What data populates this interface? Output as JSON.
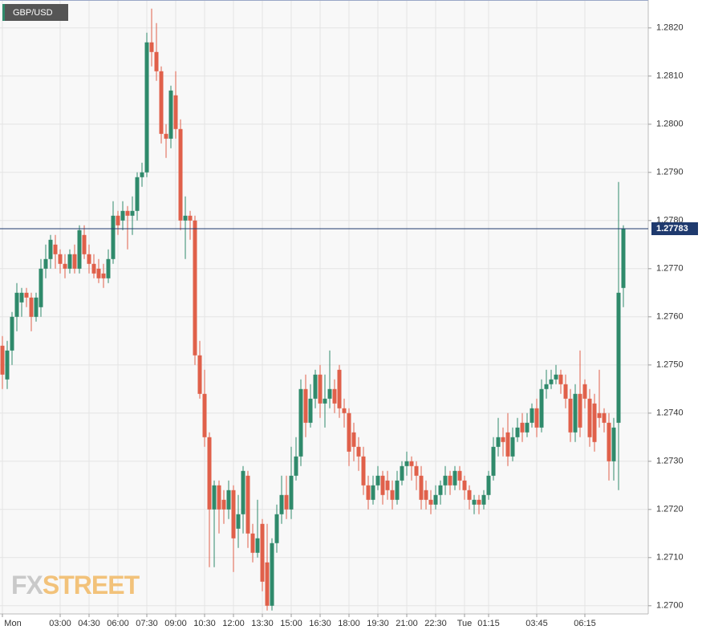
{
  "chart_data": {
    "type": "candlestick",
    "title": "GBP/USD",
    "watermark": {
      "prefix": "FX",
      "suffix": "STREET"
    },
    "up_color": "#2f8a6b",
    "down_color": "#e0604a",
    "grid": true,
    "last_line_color": "#1f3a6e",
    "categories": [
      "Mon",
      null,
      null,
      null,
      null,
      null,
      null,
      null,
      null,
      null,
      null,
      null,
      "03:00",
      null,
      null,
      null,
      null,
      null,
      "04:30",
      null,
      null,
      null,
      null,
      null,
      "06:00",
      null,
      null,
      null,
      null,
      null,
      "07:30",
      null,
      null,
      null,
      null,
      null,
      "09:00",
      null,
      null,
      null,
      null,
      null,
      "10:30",
      null,
      null,
      null,
      null,
      null,
      "12:00",
      null,
      null,
      null,
      null,
      null,
      "13:30",
      null,
      null,
      null,
      null,
      null,
      "15:00",
      null,
      null,
      null,
      null,
      null,
      "16:30",
      null,
      null,
      null,
      null,
      null,
      "18:00",
      null,
      null,
      null,
      null,
      null,
      "19:30",
      null,
      null,
      null,
      null,
      null,
      "21:00",
      null,
      null,
      null,
      null,
      null,
      "22:30",
      null,
      null,
      null,
      null,
      null,
      "Tue",
      null,
      null,
      null,
      null,
      "01:15",
      null,
      null,
      null,
      null,
      null,
      null,
      null,
      null,
      null,
      "03:45",
      null,
      null,
      null,
      null,
      null,
      null,
      null,
      null,
      null,
      "06:15",
      null,
      null,
      null,
      null,
      null,
      null,
      null,
      null
    ],
    "open": [
      1.2754,
      1.2747,
      1.2753,
      1.276,
      1.2763,
      1.2765,
      1.2764,
      1.276,
      1.2762,
      1.277,
      1.2772,
      1.2775,
      1.2773,
      1.2771,
      1.277,
      1.2773,
      1.277,
      1.2777,
      1.2773,
      1.2771,
      1.277,
      1.2769,
      1.2768,
      1.2772,
      1.2781,
      1.278,
      1.2782,
      1.2781,
      1.2782,
      1.2789,
      1.279,
      1.2817,
      1.2815,
      1.2811,
      1.2798,
      1.2797,
      1.2806,
      1.2799,
      1.278,
      1.2781,
      1.278,
      1.2752,
      1.2744,
      1.2735,
      1.272,
      1.2725,
      1.2722,
      1.272,
      1.2724,
      1.2716,
      1.2719,
      1.2727,
      1.2715,
      1.2711,
      1.2717,
      1.2709,
      1.27,
      1.2713,
      1.2719,
      1.2723,
      1.272,
      1.2727,
      1.2731,
      1.2745,
      1.2738,
      1.2743,
      1.2748,
      1.2742,
      1.2743,
      1.2745,
      1.2749,
      1.2741,
      1.274,
      1.2736,
      1.2733,
      1.2731,
      1.2725,
      1.2722,
      1.2725,
      1.2727,
      1.2726,
      1.2724,
      1.2722,
      1.2726,
      1.2729,
      1.273,
      1.2729,
      1.2727,
      1.2724,
      1.2722,
      1.2721,
      1.2723,
      1.2725,
      1.2727,
      1.2725,
      1.2728,
      1.2726,
      1.2724,
      1.2721,
      1.2722,
      1.2721,
      1.2723,
      1.2727,
      1.2733,
      1.2735,
      1.2736,
      1.2731,
      1.2735,
      1.2738,
      1.2736,
      1.2738,
      1.2741,
      1.2737,
      1.2745,
      1.2746,
      1.2747,
      1.2748,
      1.2746,
      1.2743,
      1.2736,
      1.2744,
      1.2746,
      1.2743,
      1.2742,
      1.274,
      1.274,
      1.2738,
      1.273,
      1.2738,
      1.2766
    ],
    "high": [
      1.2756,
      1.2755,
      1.2761,
      1.2767,
      1.2766,
      1.2766,
      1.2765,
      1.2765,
      1.2772,
      1.2775,
      1.2777,
      1.2777,
      1.2774,
      1.2773,
      1.2774,
      1.2775,
      1.2779,
      1.2779,
      1.2775,
      1.2773,
      1.2772,
      1.2771,
      1.2774,
      1.2784,
      1.2782,
      1.2784,
      1.2783,
      1.2785,
      1.279,
      1.2792,
      1.2819,
      1.2824,
      1.2821,
      1.2812,
      1.28,
      1.2808,
      1.2811,
      1.2801,
      1.2785,
      1.2782,
      1.2781,
      1.2755,
      1.2749,
      1.2736,
      1.2726,
      1.2726,
      1.2724,
      1.2726,
      1.2725,
      1.2723,
      1.2729,
      1.2728,
      1.2717,
      1.2722,
      1.2718,
      1.2717,
      1.2714,
      1.2721,
      1.2727,
      1.2727,
      1.2733,
      1.2735,
      1.2747,
      1.2748,
      1.2746,
      1.2749,
      1.275,
      1.2748,
      1.2753,
      1.2747,
      1.275,
      1.2743,
      1.2741,
      1.2738,
      1.2735,
      1.2733,
      1.2727,
      1.2727,
      1.2729,
      1.2728,
      1.2728,
      1.2726,
      1.2728,
      1.273,
      1.2732,
      1.2731,
      1.273,
      1.2729,
      1.2726,
      1.2724,
      1.2725,
      1.2726,
      1.2729,
      1.2728,
      1.2729,
      1.2729,
      1.2727,
      1.2725,
      1.2723,
      1.2723,
      1.2724,
      1.2728,
      1.2735,
      1.2739,
      1.2737,
      1.274,
      1.2737,
      1.2739,
      1.274,
      1.274,
      1.2742,
      1.2743,
      1.2747,
      1.2749,
      1.2749,
      1.275,
      1.2749,
      1.2748,
      1.2745,
      1.2746,
      1.2753,
      1.2747,
      1.2745,
      1.2744,
      1.2749,
      1.2741,
      1.274,
      1.2739,
      1.2788,
      1.2779
    ],
    "low": [
      1.2745,
      1.2745,
      1.275,
      1.2757,
      1.276,
      1.2762,
      1.2757,
      1.2759,
      1.276,
      1.2768,
      1.277,
      1.277,
      1.2769,
      1.2768,
      1.2769,
      1.2769,
      1.2769,
      1.2772,
      1.2769,
      1.2768,
      1.2767,
      1.2766,
      1.2767,
      1.2771,
      1.2777,
      1.2778,
      1.2774,
      1.2777,
      1.278,
      1.2787,
      1.2789,
      1.2812,
      1.2809,
      1.2796,
      1.2793,
      1.2795,
      1.2797,
      1.2778,
      1.2772,
      1.2776,
      1.275,
      1.2743,
      1.2733,
      1.2708,
      1.2708,
      1.2715,
      1.2717,
      1.2718,
      1.2707,
      1.2712,
      1.2715,
      1.2712,
      1.2709,
      1.271,
      1.2703,
      1.2699,
      1.2699,
      1.2711,
      1.2717,
      1.2718,
      1.2718,
      1.2726,
      1.2729,
      1.2735,
      1.2737,
      1.2741,
      1.2739,
      1.2737,
      1.2741,
      1.274,
      1.2739,
      1.2737,
      1.2729,
      1.273,
      1.2728,
      1.2723,
      1.272,
      1.2721,
      1.2724,
      1.2721,
      1.2722,
      1.272,
      1.2721,
      1.2725,
      1.2727,
      1.2726,
      1.2724,
      1.272,
      1.272,
      1.2719,
      1.272,
      1.2721,
      1.2723,
      1.2723,
      1.2724,
      1.2724,
      1.2722,
      1.272,
      1.2719,
      1.2719,
      1.272,
      1.2722,
      1.2726,
      1.2731,
      1.2731,
      1.2729,
      1.273,
      1.2734,
      1.2734,
      1.2735,
      1.2737,
      1.2735,
      1.2736,
      1.2743,
      1.2745,
      1.2746,
      1.2744,
      1.2741,
      1.2734,
      1.2734,
      1.2735,
      1.2741,
      1.2733,
      1.2732,
      1.2737,
      1.2736,
      1.2726,
      1.2726,
      1.2724,
      1.2762
    ],
    "close": [
      1.2748,
      1.2753,
      1.276,
      1.2765,
      1.2765,
      1.2764,
      1.276,
      1.2764,
      1.277,
      1.2772,
      1.2776,
      1.2773,
      1.2771,
      1.277,
      1.2773,
      1.277,
      1.2778,
      1.2773,
      1.2771,
      1.2769,
      1.2768,
      1.2768,
      1.2772,
      1.2781,
      1.2779,
      1.2782,
      1.2781,
      1.2782,
      1.2789,
      1.279,
      1.2817,
      1.2815,
      1.2811,
      1.2798,
      1.2797,
      1.2807,
      1.2799,
      1.278,
      1.2781,
      1.278,
      1.2752,
      1.2744,
      1.2735,
      1.272,
      1.2725,
      1.272,
      1.272,
      1.2724,
      1.2714,
      1.2719,
      1.2728,
      1.2715,
      1.2711,
      1.2714,
      1.2705,
      1.27,
      1.2713,
      1.2719,
      1.2723,
      1.272,
      1.2727,
      1.2731,
      1.2745,
      1.2738,
      1.2743,
      1.2748,
      1.2742,
      1.2743,
      1.2745,
      1.2742,
      1.2741,
      1.274,
      1.2732,
      1.2733,
      1.2731,
      1.2725,
      1.2722,
      1.2725,
      1.2727,
      1.2723,
      1.2724,
      1.2722,
      1.2726,
      1.2729,
      1.273,
      1.2729,
      1.2727,
      1.2722,
      1.2722,
      1.2721,
      1.2723,
      1.2725,
      1.2727,
      1.2725,
      1.2728,
      1.2726,
      1.2724,
      1.2722,
      1.2722,
      1.2721,
      1.2723,
      1.2727,
      1.2733,
      1.2735,
      1.2734,
      1.2731,
      1.2735,
      1.2737,
      1.2736,
      1.2738,
      1.2741,
      1.2737,
      1.2745,
      1.2746,
      1.2747,
      1.2748,
      1.2746,
      1.2743,
      1.2736,
      1.2744,
      1.2737,
      1.2743,
      1.2735,
      1.2734,
      1.2739,
      1.2738,
      1.273,
      1.2737,
      1.2765,
      1.27783
    ],
    "ylim": [
      1.26983,
      1.28258
    ],
    "yticks": [
      {
        "value": 1.27,
        "label": "1.2700"
      },
      {
        "value": 1.271,
        "label": "1.2710"
      },
      {
        "value": 1.272,
        "label": "1.2720"
      },
      {
        "value": 1.273,
        "label": "1.2730"
      },
      {
        "value": 1.274,
        "label": "1.2740"
      },
      {
        "value": 1.275,
        "label": "1.2750"
      },
      {
        "value": 1.276,
        "label": "1.2760"
      },
      {
        "value": 1.277,
        "label": "1.2770"
      },
      {
        "value": 1.278,
        "label": "1.2780"
      },
      {
        "value": 1.279,
        "label": "1.2790"
      },
      {
        "value": 1.28,
        "label": "1.2800"
      },
      {
        "value": 1.281,
        "label": "1.2810"
      },
      {
        "value": 1.282,
        "label": "1.2820"
      }
    ]
  }
}
